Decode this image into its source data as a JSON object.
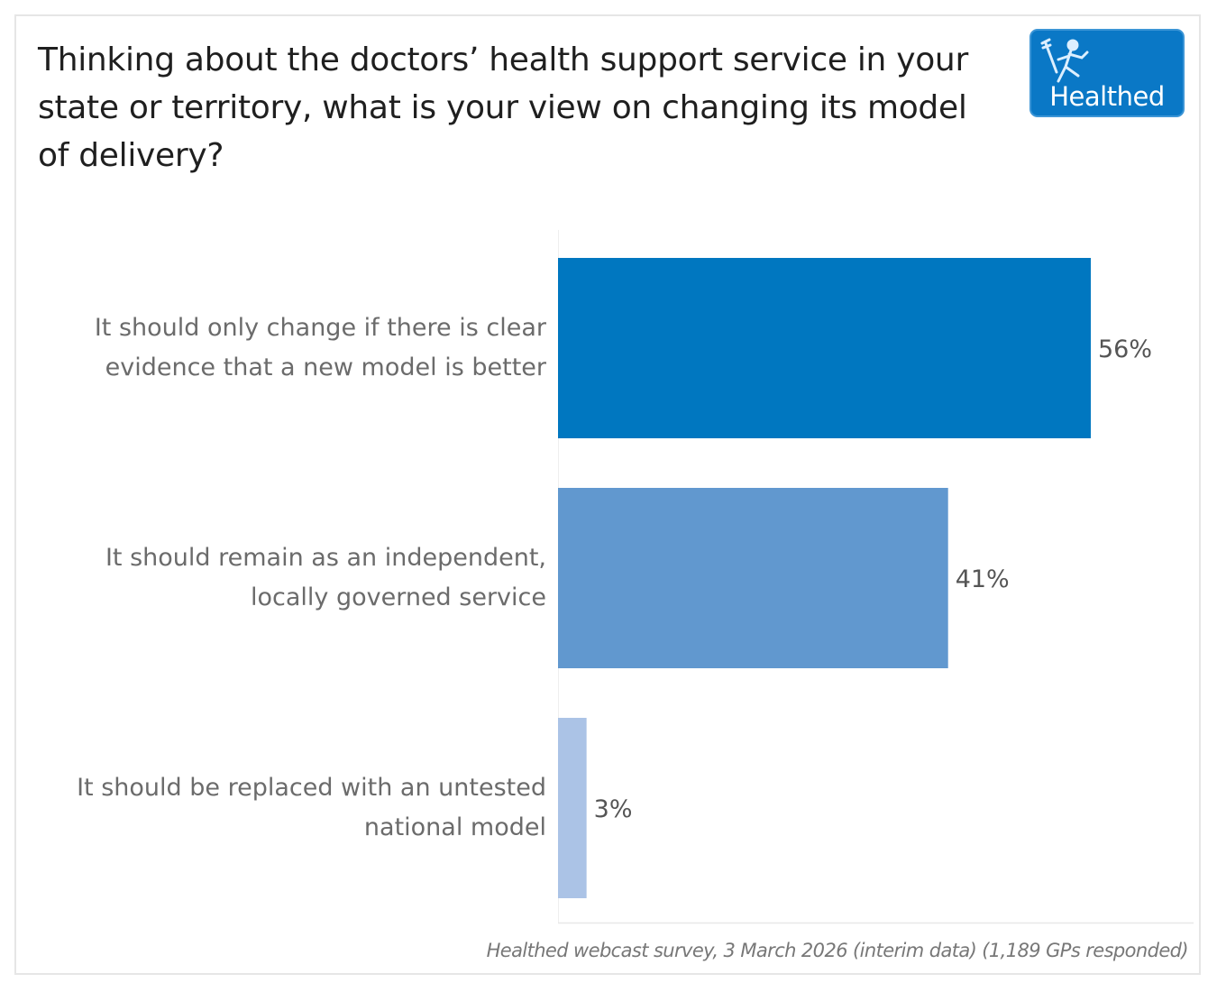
{
  "header": {
    "title": "Thinking about the doctors’ health support service in your state or territory, what is your view on changing its model of delivery?",
    "logo_text": "Healthed",
    "logo_icon": "running-hermes-figure-icon"
  },
  "footer": {
    "source": "Healthed webcast survey, 3 March 2026 (interim data) (1,189 GPs responded)"
  },
  "colors": {
    "bar_1": "#0077c0",
    "bar_2": "#6198cf",
    "bar_3": "#abc3e6",
    "logo_bg": "#0a78c6"
  },
  "chart_data": {
    "type": "bar",
    "orientation": "horizontal",
    "title": "Thinking about the doctors’ health support service in your state or territory, what is your view on changing its model of delivery?",
    "categories": [
      [
        "It should only change if there is clear",
        "evidence that a new model is better"
      ],
      [
        "It should remain as an independent,",
        "locally governed service"
      ],
      [
        "It should be replaced with an untested",
        "national model"
      ]
    ],
    "values": [
      56,
      41,
      3
    ],
    "value_labels": [
      "56%",
      "41%",
      "3%"
    ],
    "unit": "%",
    "xlabel": "",
    "ylabel": "",
    "xlim": [
      0,
      67
    ],
    "grid": false,
    "legend": "none"
  }
}
